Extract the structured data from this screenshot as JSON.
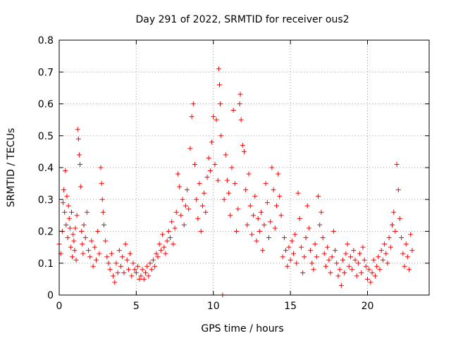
{
  "chart_data": {
    "type": "scatter",
    "title": "Day 291 of 2022, SRMTID for receiver ous2",
    "xlabel": "GPS time / hours",
    "ylabel": "SRMTID / TECUs",
    "xlim": [
      0,
      24
    ],
    "ylim": [
      0,
      0.8
    ],
    "xticks": [
      0,
      5,
      10,
      15,
      20
    ],
    "xtick_labels": [
      "0",
      "5",
      "10",
      "15",
      "20"
    ],
    "yticks": [
      0,
      0.1,
      0.2,
      0.3,
      0.4,
      0.5,
      0.6,
      0.7,
      0.8
    ],
    "ytick_labels": [
      "0",
      "0.1",
      "0.2",
      "0.3",
      "0.4",
      "0.5",
      "0.6",
      "0.7",
      "0.8"
    ],
    "grid": true,
    "marker": "+",
    "color": "#ff0000",
    "series": [
      {
        "name": "SRMTID ous2",
        "points": [
          [
            0.0,
            0.16
          ],
          [
            0.1,
            0.13
          ],
          [
            0.2,
            0.2
          ],
          [
            0.25,
            0.29
          ],
          [
            0.3,
            0.33
          ],
          [
            0.35,
            0.26
          ],
          [
            0.4,
            0.39
          ],
          [
            0.45,
            0.22
          ],
          [
            0.5,
            0.31
          ],
          [
            0.55,
            0.18
          ],
          [
            0.6,
            0.28
          ],
          [
            0.65,
            0.24
          ],
          [
            0.7,
            0.21
          ],
          [
            0.75,
            0.15
          ],
          [
            0.8,
            0.26
          ],
          [
            0.85,
            0.12
          ],
          [
            0.9,
            0.19
          ],
          [
            0.95,
            0.17
          ],
          [
            1.0,
            0.14
          ],
          [
            1.05,
            0.21
          ],
          [
            1.1,
            0.11
          ],
          [
            1.15,
            0.25
          ],
          [
            1.2,
            0.52
          ],
          [
            1.25,
            0.49
          ],
          [
            1.3,
            0.44
          ],
          [
            1.35,
            0.41
          ],
          [
            1.4,
            0.34
          ],
          [
            1.45,
            0.2
          ],
          [
            1.5,
            0.16
          ],
          [
            1.55,
            0.13
          ],
          [
            1.6,
            0.22
          ],
          [
            1.7,
            0.18
          ],
          [
            1.8,
            0.26
          ],
          [
            1.9,
            0.14
          ],
          [
            2.0,
            0.12
          ],
          [
            2.1,
            0.17
          ],
          [
            2.2,
            0.09
          ],
          [
            2.3,
            0.15
          ],
          [
            2.4,
            0.11
          ],
          [
            2.5,
            0.2
          ],
          [
            2.6,
            0.13
          ],
          [
            2.7,
            0.4
          ],
          [
            2.75,
            0.35
          ],
          [
            2.8,
            0.3
          ],
          [
            2.85,
            0.26
          ],
          [
            2.9,
            0.22
          ],
          [
            3.0,
            0.17
          ],
          [
            3.1,
            0.12
          ],
          [
            3.2,
            0.1
          ],
          [
            3.3,
            0.08
          ],
          [
            3.4,
            0.13
          ],
          [
            3.5,
            0.06
          ],
          [
            3.6,
            0.04
          ],
          [
            3.7,
            0.1
          ],
          [
            3.8,
            0.07
          ],
          [
            3.9,
            0.14
          ],
          [
            4.0,
            0.09
          ],
          [
            4.1,
            0.12
          ],
          [
            4.2,
            0.07
          ],
          [
            4.3,
            0.16
          ],
          [
            4.4,
            0.11
          ],
          [
            4.5,
            0.08
          ],
          [
            4.6,
            0.13
          ],
          [
            4.7,
            0.06
          ],
          [
            4.8,
            0.1
          ],
          [
            4.9,
            0.08
          ],
          [
            5.0,
            0.07
          ],
          [
            5.1,
            0.09
          ],
          [
            5.2,
            0.05
          ],
          [
            5.3,
            0.06
          ],
          [
            5.4,
            0.08
          ],
          [
            5.5,
            0.05
          ],
          [
            5.6,
            0.07
          ],
          [
            5.7,
            0.09
          ],
          [
            5.8,
            0.06
          ],
          [
            5.9,
            0.1
          ],
          [
            6.0,
            0.08
          ],
          [
            6.1,
            0.11
          ],
          [
            6.2,
            0.09
          ],
          [
            6.3,
            0.13
          ],
          [
            6.4,
            0.12
          ],
          [
            6.5,
            0.16
          ],
          [
            6.6,
            0.14
          ],
          [
            6.7,
            0.19
          ],
          [
            6.8,
            0.15
          ],
          [
            6.9,
            0.13
          ],
          [
            7.0,
            0.17
          ],
          [
            7.1,
            0.2
          ],
          [
            7.2,
            0.18
          ],
          [
            7.3,
            0.23
          ],
          [
            7.4,
            0.16
          ],
          [
            7.5,
            0.21
          ],
          [
            7.6,
            0.26
          ],
          [
            7.7,
            0.38
          ],
          [
            7.8,
            0.34
          ],
          [
            7.9,
            0.25
          ],
          [
            8.0,
            0.3
          ],
          [
            8.1,
            0.22
          ],
          [
            8.2,
            0.28
          ],
          [
            8.3,
            0.33
          ],
          [
            8.4,
            0.27
          ],
          [
            8.5,
            0.46
          ],
          [
            8.6,
            0.56
          ],
          [
            8.7,
            0.6
          ],
          [
            8.8,
            0.41
          ],
          [
            8.9,
            0.3
          ],
          [
            9.0,
            0.24
          ],
          [
            9.1,
            0.35
          ],
          [
            9.2,
            0.2
          ],
          [
            9.3,
            0.28
          ],
          [
            9.4,
            0.32
          ],
          [
            9.5,
            0.26
          ],
          [
            9.6,
            0.37
          ],
          [
            9.7,
            0.43
          ],
          [
            9.8,
            0.39
          ],
          [
            9.9,
            0.48
          ],
          [
            10.0,
            0.56
          ],
          [
            10.1,
            0.41
          ],
          [
            10.2,
            0.55
          ],
          [
            10.3,
            0.36
          ],
          [
            10.35,
            0.71
          ],
          [
            10.4,
            0.66
          ],
          [
            10.45,
            0.6
          ],
          [
            10.5,
            0.5
          ],
          [
            10.6,
            0.0
          ],
          [
            10.7,
            0.3
          ],
          [
            10.8,
            0.44
          ],
          [
            10.9,
            0.36
          ],
          [
            11.0,
            0.32
          ],
          [
            11.1,
            0.25
          ],
          [
            11.2,
            0.4
          ],
          [
            11.3,
            0.58
          ],
          [
            11.4,
            0.35
          ],
          [
            11.5,
            0.2
          ],
          [
            11.6,
            0.27
          ],
          [
            11.7,
            0.6
          ],
          [
            11.75,
            0.63
          ],
          [
            11.8,
            0.55
          ],
          [
            11.9,
            0.47
          ],
          [
            12.0,
            0.45
          ],
          [
            12.1,
            0.33
          ],
          [
            12.2,
            0.22
          ],
          [
            12.3,
            0.38
          ],
          [
            12.4,
            0.28
          ],
          [
            12.5,
            0.19
          ],
          [
            12.6,
            0.25
          ],
          [
            12.7,
            0.31
          ],
          [
            12.8,
            0.17
          ],
          [
            12.9,
            0.24
          ],
          [
            13.0,
            0.2
          ],
          [
            13.1,
            0.26
          ],
          [
            13.2,
            0.14
          ],
          [
            13.3,
            0.22
          ],
          [
            13.4,
            0.35
          ],
          [
            13.5,
            0.29
          ],
          [
            13.6,
            0.18
          ],
          [
            13.7,
            0.23
          ],
          [
            13.8,
            0.4
          ],
          [
            13.9,
            0.33
          ],
          [
            14.0,
            0.21
          ],
          [
            14.1,
            0.28
          ],
          [
            14.2,
            0.38
          ],
          [
            14.3,
            0.31
          ],
          [
            14.4,
            0.25
          ],
          [
            14.5,
            0.12
          ],
          [
            14.6,
            0.18
          ],
          [
            14.7,
            0.14
          ],
          [
            14.8,
            0.09
          ],
          [
            14.9,
            0.15
          ],
          [
            15.0,
            0.11
          ],
          [
            15.1,
            0.17
          ],
          [
            15.2,
            0.13
          ],
          [
            15.3,
            0.19
          ],
          [
            15.4,
            0.1
          ],
          [
            15.5,
            0.32
          ],
          [
            15.6,
            0.24
          ],
          [
            15.7,
            0.15
          ],
          [
            15.8,
            0.07
          ],
          [
            15.9,
            0.12
          ],
          [
            16.0,
            0.18
          ],
          [
            16.1,
            0.28
          ],
          [
            16.2,
            0.21
          ],
          [
            16.3,
            0.14
          ],
          [
            16.4,
            0.1
          ],
          [
            16.5,
            0.08
          ],
          [
            16.6,
            0.16
          ],
          [
            16.7,
            0.12
          ],
          [
            16.8,
            0.31
          ],
          [
            16.9,
            0.22
          ],
          [
            17.0,
            0.26
          ],
          [
            17.1,
            0.18
          ],
          [
            17.2,
            0.13
          ],
          [
            17.3,
            0.09
          ],
          [
            17.4,
            0.15
          ],
          [
            17.5,
            0.11
          ],
          [
            17.6,
            0.07
          ],
          [
            17.7,
            0.12
          ],
          [
            17.8,
            0.2
          ],
          [
            17.9,
            0.14
          ],
          [
            18.0,
            0.1
          ],
          [
            18.1,
            0.06
          ],
          [
            18.2,
            0.08
          ],
          [
            18.3,
            0.03
          ],
          [
            18.4,
            0.11
          ],
          [
            18.5,
            0.07
          ],
          [
            18.6,
            0.13
          ],
          [
            18.7,
            0.16
          ],
          [
            18.8,
            0.09
          ],
          [
            18.9,
            0.12
          ],
          [
            19.0,
            0.08
          ],
          [
            19.1,
            0.14
          ],
          [
            19.2,
            0.11
          ],
          [
            19.3,
            0.06
          ],
          [
            19.4,
            0.1
          ],
          [
            19.5,
            0.13
          ],
          [
            19.6,
            0.07
          ],
          [
            19.7,
            0.15
          ],
          [
            19.8,
            0.11
          ],
          [
            19.9,
            0.09
          ],
          [
            20.0,
            0.05
          ],
          [
            20.1,
            0.08
          ],
          [
            20.2,
            0.04
          ],
          [
            20.3,
            0.07
          ],
          [
            20.4,
            0.11
          ],
          [
            20.5,
            0.06
          ],
          [
            20.6,
            0.09
          ],
          [
            20.7,
            0.12
          ],
          [
            20.8,
            0.08
          ],
          [
            20.9,
            0.14
          ],
          [
            21.0,
            0.11
          ],
          [
            21.1,
            0.16
          ],
          [
            21.2,
            0.13
          ],
          [
            21.3,
            0.1
          ],
          [
            21.4,
            0.18
          ],
          [
            21.5,
            0.15
          ],
          [
            21.6,
            0.22
          ],
          [
            21.7,
            0.26
          ],
          [
            21.8,
            0.2
          ],
          [
            21.9,
            0.41
          ],
          [
            22.0,
            0.33
          ],
          [
            22.1,
            0.24
          ],
          [
            22.2,
            0.18
          ],
          [
            22.3,
            0.13
          ],
          [
            22.4,
            0.09
          ],
          [
            22.5,
            0.16
          ],
          [
            22.6,
            0.12
          ],
          [
            22.7,
            0.08
          ],
          [
            22.8,
            0.19
          ],
          [
            22.9,
            0.14
          ]
        ]
      }
    ]
  }
}
